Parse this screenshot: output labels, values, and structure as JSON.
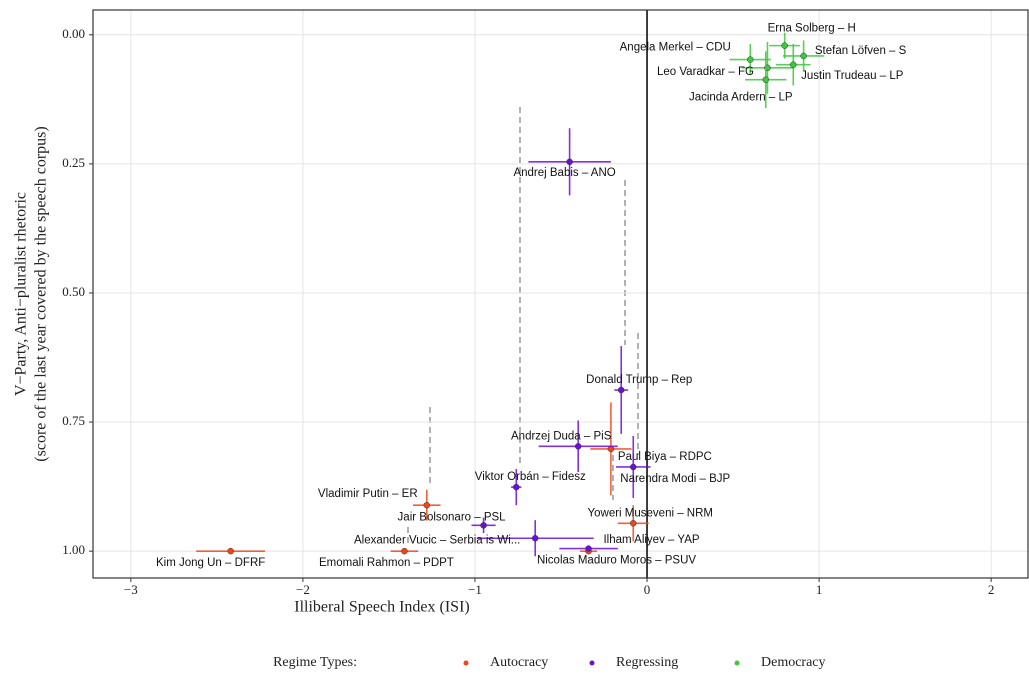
{
  "chart_data": {
    "type": "scatter",
    "x_label": "Illiberal Speech Index (ISI)",
    "y_label": [
      "V−Party, Anti−pluralist rhetoric",
      "(score of the last year covered by the speech corpus)"
    ],
    "legend_title": "Regime Types:",
    "legend_position": "bottom",
    "grid": true,
    "xlim": [
      -3.22,
      2.22
    ],
    "ylim": [
      1.052,
      -0.048
    ],
    "xticks": [
      {
        "value": -3,
        "label": "−3"
      },
      {
        "value": -2,
        "label": "−2"
      },
      {
        "value": -1,
        "label": "−1"
      },
      0,
      1,
      2
    ],
    "yticks": [
      {
        "value": 0,
        "label": "0.00"
      },
      {
        "value": 0.25,
        "label": "0.25"
      },
      {
        "value": 0.5,
        "label": "0.50"
      },
      {
        "value": 0.75,
        "label": "0.75"
      },
      {
        "value": 1,
        "label": "1.00"
      }
    ],
    "series": [
      {
        "name": "Autocracy",
        "color": "#f0451a",
        "labels": [
          "Kim Jong Un – DFRF",
          "Emomali Rahmon – PDPT",
          "Vladimir Putin – ER",
          "Paul Biya – RDPC",
          "Yoweri Museveni – NRM",
          "Ilham Aliyev – YAP"
        ],
        "x": [
          -2.42,
          -1.41,
          -1.28,
          -0.21,
          -0.08,
          -0.34
        ],
        "values": [
          1.0,
          1.0,
          0.911,
          0.802,
          0.946,
          1.0
        ],
        "xerr": [
          0.2,
          0.08,
          0.08,
          0.12,
          0.09,
          0.05
        ],
        "yerr": [
          0,
          0,
          0.03,
          0.09,
          0.035,
          0
        ]
      },
      {
        "name": "Regressing",
        "color": "#6a0fd6",
        "labels": [
          "Nicolas Maduro Moros – PSUV",
          "Alexander Vucic – Serbia is Wi...",
          "Jair Bolsonaro – PSL",
          "Viktor Orbán – Fidesz",
          "Narendra Modi – BJP",
          "Andrzej Duda – PiS",
          "Donald Trump – Rep",
          "Andrej Babis – ANO"
        ],
        "x": [
          -0.34,
          -0.65,
          -0.95,
          -0.76,
          -0.08,
          -0.4,
          -0.15,
          -0.45
        ],
        "values": [
          0.995,
          0.975,
          0.95,
          0.876,
          0.837,
          0.797,
          0.688,
          0.246
        ],
        "xerr": [
          0.17,
          0.34,
          0.07,
          0.03,
          0.1,
          0.23,
          0.04,
          0.24
        ],
        "yerr": [
          0,
          0.035,
          0.015,
          0.035,
          0.06,
          0.05,
          0.085,
          0.065
        ]
      },
      {
        "name": "Democracy",
        "color": "#3cc83c",
        "labels": [
          "Angela Merkel – CDU",
          "Leo Varadkar – FG",
          "Jacinda Ardern – LP",
          "Erna Solberg – H",
          "Stefan Löfven – S",
          "Justin Trudeau – LP"
        ],
        "x": [
          0.6,
          0.7,
          0.69,
          0.8,
          0.91,
          0.85
        ],
        "values": [
          0.048,
          0.064,
          0.087,
          0.021,
          0.041,
          0.058
        ],
        "xerr": [
          0.12,
          0.15,
          0.12,
          0.09,
          0.12,
          0.1
        ],
        "yerr": [
          0.03,
          0.05,
          0.055,
          0.025,
          0.03,
          0.04
        ]
      }
    ]
  }
}
